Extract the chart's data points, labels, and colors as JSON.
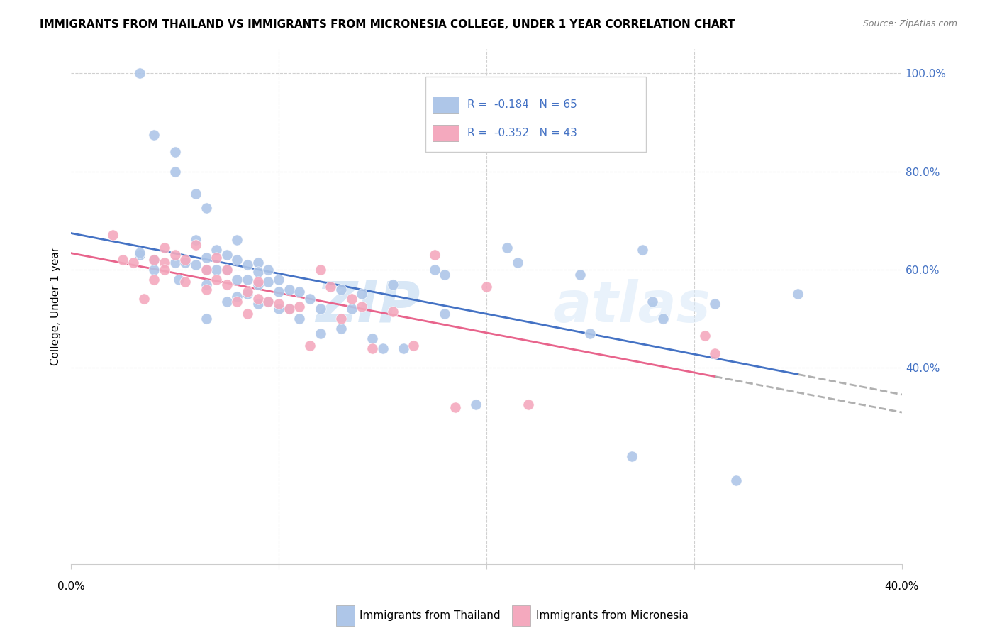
{
  "title": "IMMIGRANTS FROM THAILAND VS IMMIGRANTS FROM MICRONESIA COLLEGE, UNDER 1 YEAR CORRELATION CHART",
  "source": "Source: ZipAtlas.com",
  "ylabel": "College, Under 1 year",
  "xlim": [
    0.0,
    0.4
  ],
  "ylim": [
    0.0,
    1.05
  ],
  "legend_R_thailand": "-0.184",
  "legend_N_thailand": "65",
  "legend_R_micronesia": "-0.352",
  "legend_N_micronesia": "43",
  "color_thailand": "#aec6e8",
  "color_micronesia": "#f4a9be",
  "color_line_thailand": "#4472c4",
  "color_line_micronesia": "#e8648c",
  "color_line_dashed": "#b0b0b0",
  "watermark_zip": "ZIP",
  "watermark_atlas": "atlas",
  "thailand_x": [
    0.033,
    0.033,
    0.04,
    0.04,
    0.05,
    0.052,
    0.055,
    0.06,
    0.06,
    0.065,
    0.065,
    0.065,
    0.065,
    0.07,
    0.07,
    0.075,
    0.075,
    0.075,
    0.08,
    0.08,
    0.08,
    0.08,
    0.085,
    0.085,
    0.085,
    0.09,
    0.09,
    0.09,
    0.09,
    0.095,
    0.095,
    0.095,
    0.1,
    0.1,
    0.1,
    0.105,
    0.105,
    0.11,
    0.11,
    0.115,
    0.12,
    0.12,
    0.13,
    0.13,
    0.135,
    0.14,
    0.145,
    0.15,
    0.155,
    0.16,
    0.175,
    0.18,
    0.18,
    0.195,
    0.21,
    0.215,
    0.245,
    0.25,
    0.27,
    0.275,
    0.28,
    0.285,
    0.31,
    0.32,
    0.35
  ],
  "thailand_y": [
    0.63,
    0.635,
    0.62,
    0.6,
    0.615,
    0.58,
    0.615,
    0.66,
    0.61,
    0.625,
    0.6,
    0.57,
    0.5,
    0.64,
    0.6,
    0.63,
    0.6,
    0.535,
    0.66,
    0.62,
    0.58,
    0.545,
    0.61,
    0.58,
    0.55,
    0.615,
    0.595,
    0.57,
    0.53,
    0.6,
    0.575,
    0.535,
    0.58,
    0.555,
    0.52,
    0.56,
    0.52,
    0.555,
    0.5,
    0.54,
    0.52,
    0.47,
    0.56,
    0.48,
    0.52,
    0.55,
    0.46,
    0.44,
    0.57,
    0.44,
    0.6,
    0.59,
    0.51,
    0.325,
    0.645,
    0.615,
    0.59,
    0.47,
    0.22,
    0.64,
    0.535,
    0.5,
    0.53,
    0.17,
    0.55
  ],
  "micronesia_x": [
    0.02,
    0.025,
    0.03,
    0.035,
    0.04,
    0.04,
    0.045,
    0.045,
    0.045,
    0.05,
    0.055,
    0.055,
    0.06,
    0.065,
    0.065,
    0.07,
    0.07,
    0.075,
    0.075,
    0.08,
    0.085,
    0.085,
    0.09,
    0.09,
    0.095,
    0.1,
    0.105,
    0.11,
    0.115,
    0.12,
    0.125,
    0.13,
    0.135,
    0.14,
    0.145,
    0.155,
    0.165,
    0.175,
    0.185,
    0.2,
    0.22,
    0.305,
    0.31
  ],
  "micronesia_y": [
    0.67,
    0.62,
    0.615,
    0.54,
    0.62,
    0.58,
    0.645,
    0.615,
    0.6,
    0.63,
    0.62,
    0.575,
    0.65,
    0.6,
    0.56,
    0.625,
    0.58,
    0.6,
    0.57,
    0.535,
    0.555,
    0.51,
    0.575,
    0.54,
    0.535,
    0.53,
    0.52,
    0.525,
    0.445,
    0.6,
    0.565,
    0.5,
    0.54,
    0.525,
    0.44,
    0.515,
    0.445,
    0.63,
    0.32,
    0.565,
    0.325,
    0.465,
    0.43
  ],
  "thailand_high_x": [
    0.033,
    0.04,
    0.05,
    0.05,
    0.06,
    0.065
  ],
  "thailand_high_y": [
    1.0,
    0.875,
    0.84,
    0.8,
    0.755,
    0.725
  ]
}
